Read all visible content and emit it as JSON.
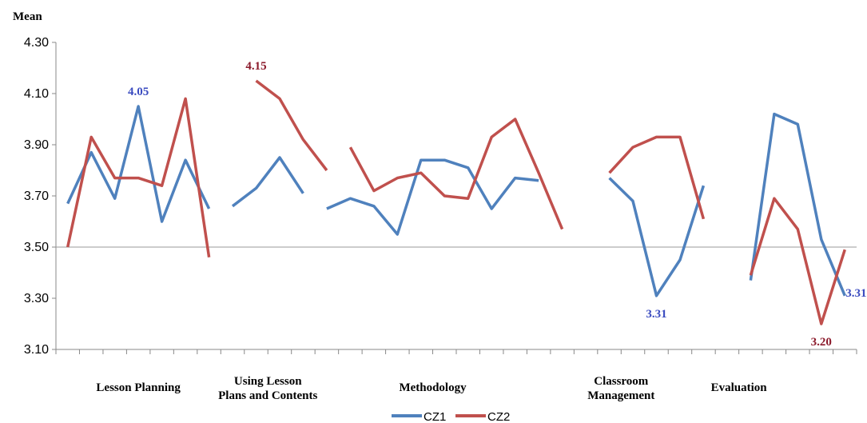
{
  "chart_data": {
    "type": "line",
    "ylabel": "Mean",
    "ylim": [
      3.1,
      4.3
    ],
    "yticks": [
      "3.10",
      "3.30",
      "3.50",
      "3.70",
      "3.90",
      "4.10",
      "4.30"
    ],
    "reference_line": 3.5,
    "point_count": 34,
    "groups": [
      {
        "label_lines": [
          "Lesson Planning"
        ],
        "start": 0,
        "end": 6
      },
      {
        "label_lines": [
          "Using Lesson",
          "Plans and Contents"
        ],
        "start": 7,
        "end": 10
      },
      {
        "label_lines": [
          "Methodology"
        ],
        "start": 11,
        "end": 20
      },
      {
        "label_lines": [
          "Classroom",
          "Management"
        ],
        "start": 21,
        "end": 26
      },
      {
        "label_lines": [
          "Evaluation"
        ],
        "start": 27,
        "end": 30
      }
    ],
    "series": [
      {
        "name": "CZ1",
        "color": "#4F81BD",
        "segments": [
          {
            "start": 0,
            "values": [
              3.67,
              3.87,
              3.69,
              4.05,
              3.6,
              3.84,
              3.65
            ]
          },
          {
            "start": 7,
            "values": [
              3.66,
              3.73,
              3.85,
              3.71
            ]
          },
          {
            "start": 11,
            "values": [
              3.65,
              3.69,
              3.66,
              3.55,
              3.84,
              3.84,
              3.81,
              3.65,
              3.77,
              3.76
            ]
          },
          {
            "start": 23,
            "values": [
              3.77,
              3.68,
              3.31,
              3.45,
              3.74
            ]
          },
          {
            "start": 29,
            "values": [
              3.37,
              4.02,
              3.98,
              3.53,
              3.31
            ]
          }
        ]
      },
      {
        "name": "CZ2",
        "color": "#C0504D",
        "segments": [
          {
            "start": 0,
            "values": [
              3.5,
              3.93,
              3.77,
              3.77,
              3.74,
              4.08,
              3.46
            ]
          },
          {
            "start": 8,
            "values": [
              4.15,
              4.08,
              3.92,
              3.8
            ]
          },
          {
            "start": 12,
            "values": [
              3.89,
              3.72,
              3.77,
              3.79,
              3.7,
              3.69,
              3.93,
              4.0,
              3.79,
              3.57
            ]
          },
          {
            "start": 23,
            "values": [
              3.79,
              3.89,
              3.93,
              3.93,
              3.61
            ]
          },
          {
            "start": 29,
            "values": [
              3.39,
              3.69,
              3.57,
              3.2,
              3.49
            ]
          }
        ]
      }
    ],
    "annotations": [
      {
        "text": "4.05",
        "series": "CZ1",
        "index": 3
      },
      {
        "text": "4.15",
        "series": "CZ2",
        "index": 8
      },
      {
        "text": "3.31",
        "series": "CZ1",
        "index": 25
      },
      {
        "text": "3.20",
        "series": "CZ2",
        "index": 32
      },
      {
        "text": "3.31",
        "series": "CZ1",
        "index": 33
      }
    ],
    "legend": [
      "CZ1",
      "CZ2"
    ],
    "legend_position": "bottom"
  }
}
